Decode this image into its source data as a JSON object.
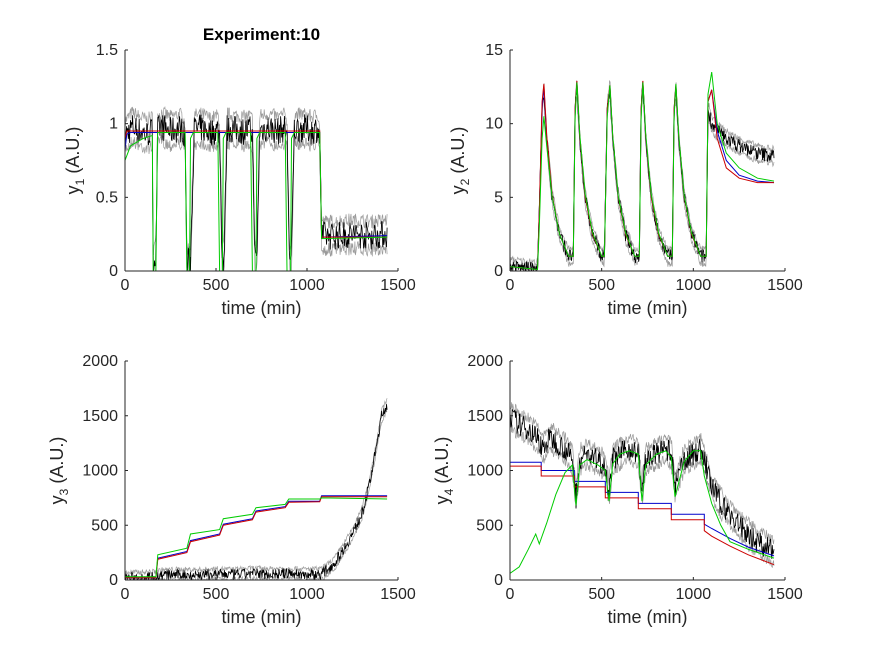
{
  "figure_title": "Experiment:10",
  "colors": {
    "noisy": "#000000",
    "fit_blue": "#0000cc",
    "fit_red": "#cc0000",
    "fit_green": "#00cc00",
    "noisy_band": "#9a9a9a"
  },
  "chart_data": [
    {
      "id": "y1",
      "type": "line",
      "title": "Experiment:10",
      "xlabel": "time (min)",
      "ylabel": "y",
      "ylabel_sub": "1",
      "ylabel_unit": " (A.U.)",
      "xlim": [
        0,
        1500
      ],
      "ylim": [
        0,
        1.5
      ],
      "xticks": [
        0,
        500,
        1000,
        1500
      ],
      "yticks": [
        0,
        0.5,
        1,
        1.5
      ],
      "xtick_labels": [
        "0",
        "500",
        "1000",
        "1500"
      ],
      "ytick_labels": [
        "0",
        "0.5",
        "1",
        "1.5"
      ],
      "grid": false,
      "series": [
        {
          "color": "blue",
          "x": [
            0,
            10,
            30,
            170,
            170,
            180,
            1070,
            1070,
            1080,
            1440
          ],
          "y": [
            0.82,
            0.93,
            0.94,
            0.94,
            0.94,
            0.94,
            0.94,
            0.94,
            0.23,
            0.24
          ]
        },
        {
          "color": "red",
          "x": [
            0,
            10,
            30,
            1070,
            1080,
            1440
          ],
          "y": [
            0.9,
            0.95,
            0.95,
            0.95,
            0.23,
            0.23
          ]
        },
        {
          "color": "green",
          "x": [
            0,
            30,
            100,
            150,
            155,
            160,
            170,
            178,
            180,
            320,
            330,
            340,
            350,
            355,
            360,
            375,
            500,
            510,
            520,
            530,
            535,
            540,
            555,
            680,
            690,
            700,
            715,
            720,
            725,
            740,
            870,
            880,
            890,
            905,
            910,
            915,
            930,
            1060,
            1070,
            1080,
            1440
          ],
          "y": [
            0.75,
            0.85,
            0.9,
            0.92,
            0,
            0,
            0,
            0.9,
            0.94,
            0.94,
            0.94,
            0,
            0,
            0,
            0.9,
            0.94,
            0.94,
            0.94,
            0,
            0,
            0,
            0.9,
            0.94,
            0.94,
            0.94,
            0,
            0,
            0,
            0.9,
            0.94,
            0.94,
            0.94,
            0,
            0,
            0,
            0.9,
            0.94,
            0.94,
            0.94,
            0.22,
            0.23
          ]
        }
      ],
      "noisy": {
        "x": [
          0,
          40,
          80,
          120,
          150,
          155,
          170,
          180,
          200,
          250,
          300,
          320,
          330,
          340,
          360,
          380,
          420,
          470,
          510,
          520,
          535,
          545,
          560,
          600,
          650,
          690,
          700,
          715,
          725,
          740,
          790,
          840,
          880,
          890,
          905,
          915,
          930,
          980,
          1030,
          1060,
          1070,
          1080,
          1150,
          1250,
          1350,
          1440
        ],
        "y": [
          0.92,
          0.98,
          0.95,
          0.93,
          0.95,
          0.05,
          0.1,
          0.96,
          0.98,
          0.95,
          0.97,
          0.95,
          0.9,
          0.05,
          0.08,
          0.96,
          0.97,
          0.94,
          0.96,
          0.92,
          0.05,
          0.1,
          0.97,
          0.96,
          0.95,
          0.96,
          0.93,
          0.05,
          0.1,
          0.96,
          0.97,
          0.95,
          0.97,
          0.93,
          0.05,
          0.1,
          0.96,
          0.97,
          0.95,
          0.97,
          0.9,
          0.24,
          0.24,
          0.25,
          0.24,
          0.25
        ],
        "band": 0.12
      }
    },
    {
      "id": "y2",
      "type": "line",
      "title": "",
      "xlabel": "time (min)",
      "ylabel": "y",
      "ylabel_sub": "2",
      "ylabel_unit": " (A.U.)",
      "xlim": [
        0,
        1500
      ],
      "ylim": [
        0,
        15
      ],
      "xticks": [
        0,
        500,
        1000,
        1500
      ],
      "yticks": [
        0,
        5,
        10,
        15
      ],
      "xtick_labels": [
        "0",
        "500",
        "1000",
        "1500"
      ],
      "ytick_labels": [
        "0",
        "5",
        "10",
        "15"
      ],
      "grid": false,
      "series": [
        {
          "color": "blue",
          "x": [
            0,
            150,
            160,
            175,
            185,
            200,
            230,
            270,
            320,
            345,
            355,
            365,
            380,
            410,
            450,
            500,
            515,
            530,
            545,
            560,
            590,
            630,
            680,
            705,
            715,
            725,
            740,
            770,
            810,
            860,
            885,
            895,
            905,
            920,
            950,
            990,
            1040,
            1070,
            1080,
            1100,
            1130,
            1180,
            1250,
            1350,
            1440
          ],
          "y": [
            0.3,
            0.1,
            4,
            11,
            12.5,
            9,
            5,
            2.5,
            1,
            1,
            11,
            12.8,
            9,
            5,
            2.5,
            1,
            1,
            11,
            12.5,
            9,
            5,
            2.5,
            1,
            1,
            11,
            12.8,
            9,
            5,
            2.5,
            1,
            1,
            11,
            12.5,
            9,
            5,
            2.5,
            1,
            1,
            11.5,
            12.3,
            9.5,
            7.5,
            6.5,
            6.1,
            6
          ]
        },
        {
          "color": "red",
          "x": [
            0,
            150,
            160,
            175,
            185,
            200,
            230,
            270,
            320,
            345,
            355,
            365,
            380,
            410,
            450,
            500,
            515,
            530,
            545,
            560,
            590,
            630,
            680,
            705,
            715,
            725,
            740,
            770,
            810,
            860,
            885,
            895,
            905,
            920,
            950,
            990,
            1040,
            1070,
            1080,
            1100,
            1130,
            1180,
            1250,
            1350,
            1440
          ],
          "y": [
            0.3,
            0.1,
            4,
            11.5,
            12.7,
            9.2,
            5.1,
            2.5,
            1,
            1,
            11,
            12.9,
            9.1,
            5,
            2.5,
            1,
            1,
            11,
            12.6,
            9.1,
            5,
            2.5,
            1,
            1,
            11,
            12.9,
            9.1,
            5,
            2.5,
            1,
            1,
            11,
            12.6,
            9.1,
            5,
            2.5,
            1,
            1,
            11.5,
            12.3,
            9,
            7,
            6.3,
            6,
            6
          ]
        },
        {
          "color": "green",
          "x": [
            0,
            150,
            160,
            175,
            185,
            200,
            230,
            270,
            320,
            345,
            355,
            365,
            380,
            410,
            450,
            500,
            515,
            530,
            545,
            560,
            590,
            630,
            680,
            705,
            715,
            725,
            740,
            770,
            810,
            860,
            885,
            895,
            905,
            920,
            950,
            990,
            1040,
            1070,
            1080,
            1100,
            1130,
            1180,
            1250,
            1350,
            1440
          ],
          "y": [
            0.3,
            0.1,
            3,
            9,
            10.5,
            8.5,
            5,
            2.5,
            1,
            1,
            10.5,
            12.8,
            9.3,
            5.2,
            2.6,
            1,
            1,
            10.5,
            12.6,
            9.2,
            5.1,
            2.6,
            1,
            1,
            10.5,
            12.8,
            9.3,
            5.2,
            2.6,
            1,
            1,
            10.5,
            12.7,
            9.2,
            5.1,
            2.6,
            1,
            1,
            12,
            13.5,
            10,
            8,
            7,
            6.3,
            6.1
          ]
        }
      ],
      "noisy": {
        "x": [
          0,
          150,
          160,
          175,
          185,
          200,
          230,
          270,
          320,
          345,
          355,
          365,
          380,
          410,
          450,
          500,
          515,
          530,
          545,
          560,
          590,
          630,
          680,
          705,
          715,
          725,
          740,
          770,
          810,
          860,
          885,
          895,
          905,
          920,
          950,
          990,
          1040,
          1070,
          1080,
          1100,
          1130,
          1180,
          1250,
          1350,
          1440
        ],
        "y": [
          0.3,
          0.1,
          4,
          11,
          12.4,
          9,
          5,
          2.5,
          1,
          1,
          11,
          12.6,
          9,
          5,
          2.5,
          1,
          1,
          11,
          12.4,
          9,
          5,
          2.5,
          1,
          1,
          11,
          12.6,
          9,
          5,
          2.5,
          1,
          1,
          11,
          12.4,
          9,
          5,
          2.5,
          1,
          1,
          11,
          10,
          9.5,
          9,
          8.5,
          8,
          7.8
        ],
        "band": 0.6
      }
    },
    {
      "id": "y3",
      "type": "line",
      "title": "",
      "xlabel": "time (min)",
      "ylabel": "y",
      "ylabel_sub": "3",
      "ylabel_unit": " (A.U.)",
      "xlim": [
        0,
        1500
      ],
      "ylim": [
        0,
        2000
      ],
      "xticks": [
        0,
        500,
        1000,
        1500
      ],
      "yticks": [
        0,
        500,
        1000,
        1500,
        2000
      ],
      "xtick_labels": [
        "0",
        "500",
        "1000",
        "1500"
      ],
      "ytick_labels": [
        "0",
        "500",
        "1000",
        "1500",
        "2000"
      ],
      "grid": false,
      "series": [
        {
          "color": "blue",
          "x": [
            0,
            170,
            180,
            340,
            360,
            520,
            540,
            700,
            720,
            880,
            900,
            1070,
            1080,
            1440
          ],
          "y": [
            20,
            20,
            200,
            260,
            360,
            420,
            510,
            560,
            630,
            670,
            720,
            720,
            770,
            770
          ]
        },
        {
          "color": "red",
          "x": [
            0,
            170,
            180,
            340,
            360,
            520,
            540,
            700,
            720,
            880,
            900,
            1070,
            1080,
            1440
          ],
          "y": [
            20,
            20,
            190,
            250,
            350,
            410,
            500,
            550,
            620,
            660,
            710,
            715,
            760,
            760
          ]
        },
        {
          "color": "green",
          "x": [
            0,
            170,
            180,
            340,
            360,
            520,
            540,
            700,
            720,
            880,
            900,
            1070,
            1080,
            1440
          ],
          "y": [
            30,
            30,
            230,
            290,
            420,
            460,
            560,
            600,
            660,
            690,
            740,
            740,
            750,
            740
          ]
        }
      ],
      "noisy": {
        "x": [
          0,
          100,
          170,
          200,
          300,
          400,
          500,
          600,
          700,
          800,
          900,
          1000,
          1080,
          1150,
          1200,
          1250,
          1300,
          1340,
          1380,
          1410,
          1440
        ],
        "y": [
          20,
          25,
          30,
          45,
          50,
          45,
          55,
          50,
          60,
          55,
          60,
          50,
          55,
          150,
          280,
          420,
          600,
          850,
          1200,
          1500,
          1600
        ],
        "band": 60
      }
    },
    {
      "id": "y4",
      "type": "line",
      "title": "",
      "xlabel": "time (min)",
      "ylabel": "y",
      "ylabel_sub": "4",
      "ylabel_unit": " (A.U.)",
      "xlim": [
        0,
        1500
      ],
      "ylim": [
        0,
        2000
      ],
      "xticks": [
        0,
        500,
        1000,
        1500
      ],
      "yticks": [
        0,
        500,
        1000,
        1500,
        2000
      ],
      "xtick_labels": [
        "0",
        "500",
        "1000",
        "1500"
      ],
      "ytick_labels": [
        "0",
        "500",
        "1000",
        "1500",
        "2000"
      ],
      "grid": false,
      "series": [
        {
          "color": "blue",
          "x": [
            0,
            170,
            170,
            350,
            350,
            520,
            520,
            700,
            700,
            880,
            880,
            1060,
            1060,
            1100,
            1200,
            1300,
            1440
          ],
          "y": [
            1075,
            1075,
            1000,
            1000,
            900,
            900,
            800,
            800,
            700,
            700,
            600,
            600,
            510,
            470,
            380,
            300,
            220
          ]
        },
        {
          "color": "red",
          "x": [
            0,
            170,
            170,
            350,
            350,
            520,
            520,
            700,
            700,
            880,
            880,
            1060,
            1060,
            1100,
            1200,
            1300,
            1440
          ],
          "y": [
            1040,
            1040,
            950,
            950,
            850,
            850,
            750,
            750,
            650,
            650,
            550,
            550,
            450,
            400,
            310,
            230,
            140
          ]
        },
        {
          "color": "green",
          "x": [
            0,
            50,
            100,
            140,
            160,
            200,
            250,
            300,
            340,
            360,
            380,
            420,
            480,
            520,
            540,
            560,
            600,
            650,
            700,
            720,
            740,
            800,
            850,
            880,
            900,
            950,
            1000,
            1040,
            1060,
            1100,
            1150,
            1200,
            1300,
            1440
          ],
          "y": [
            60,
            120,
            280,
            420,
            330,
            520,
            780,
            980,
            1050,
            680,
            1050,
            1100,
            1050,
            1000,
            720,
            1060,
            1150,
            1180,
            1150,
            720,
            1050,
            1150,
            1180,
            1120,
            760,
            1080,
            1180,
            1180,
            950,
            700,
            500,
            350,
            280,
            200
          ]
        }
      ],
      "noisy": {
        "x": [
          0,
          50,
          100,
          150,
          180,
          220,
          260,
          300,
          340,
          360,
          380,
          420,
          470,
          520,
          540,
          560,
          600,
          650,
          700,
          720,
          740,
          800,
          850,
          880,
          900,
          950,
          1000,
          1040,
          1060,
          1100,
          1150,
          1200,
          1250,
          1300,
          1350,
          1400,
          1440
        ],
        "y": [
          1500,
          1420,
          1380,
          1300,
          1200,
          1300,
          1250,
          1200,
          1100,
          750,
          1100,
          1150,
          1100,
          1050,
          800,
          1100,
          1150,
          1200,
          1150,
          800,
          1100,
          1150,
          1200,
          1150,
          850,
          1100,
          1150,
          1200,
          1100,
          850,
          700,
          600,
          500,
          420,
          350,
          300,
          250
        ],
        "band": 130
      }
    }
  ]
}
